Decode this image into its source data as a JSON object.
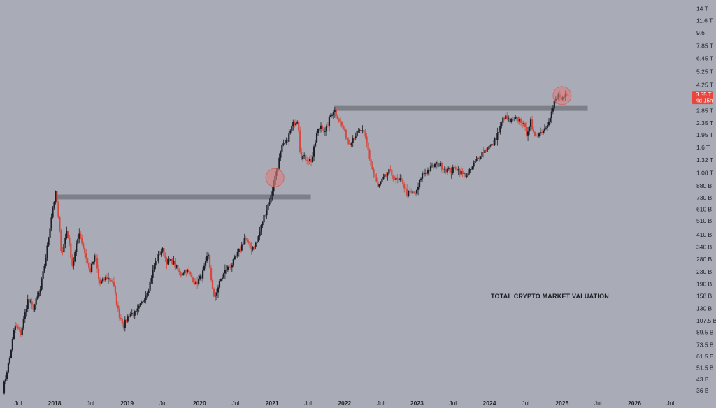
{
  "chart_data": {
    "type": "candlestick",
    "title": "",
    "xlabel": "",
    "ylabel": "",
    "y_scale": "log",
    "ylim": [
      32000000000,
      15000000000000
    ],
    "xlim": [
      "2017-04-01",
      "2026-10-01"
    ],
    "grid": false,
    "y_tick_labels": [
      "14 T",
      "11.6 T",
      "9.6 T",
      "7.85 T",
      "6.45 T",
      "5.25 T",
      "4.25 T",
      "2.85 T",
      "2.35 T",
      "1.95 T",
      "1.6 T",
      "1.32 T",
      "1.08 T",
      "880 B",
      "730 B",
      "610 B",
      "510 B",
      "410 B",
      "340 B",
      "280 B",
      "230 B",
      "190 B",
      "158 B",
      "130 B",
      "107.5 B",
      "89.5 B",
      "73.5 B",
      "61.5 B",
      "51.5 B",
      "43 B",
      "36 B"
    ],
    "y_tick_values": [
      14000000000000,
      11600000000000,
      9600000000000,
      7850000000000,
      6450000000000,
      5250000000000,
      4250000000000,
      2850000000000,
      2350000000000,
      1950000000000,
      1600000000000,
      1320000000000,
      1080000000000,
      880000000000,
      730000000000,
      610000000000,
      510000000000,
      410000000000,
      340000000000,
      280000000000,
      230000000000,
      190000000000,
      158000000000,
      130000000000,
      107500000000,
      89500000000,
      73500000000,
      61500000000,
      51500000000,
      43000000000,
      36000000000
    ],
    "x_ticks": [
      {
        "label": "Jul",
        "date": "2017-07-01",
        "year": false
      },
      {
        "label": "2018",
        "date": "2018-01-01",
        "year": true
      },
      {
        "label": "Jul",
        "date": "2018-07-01",
        "year": false
      },
      {
        "label": "2019",
        "date": "2019-01-01",
        "year": true
      },
      {
        "label": "Jul",
        "date": "2019-07-01",
        "year": false
      },
      {
        "label": "2020",
        "date": "2020-01-01",
        "year": true
      },
      {
        "label": "Jul",
        "date": "2020-07-01",
        "year": false
      },
      {
        "label": "2021",
        "date": "2021-01-01",
        "year": true
      },
      {
        "label": "Jul",
        "date": "2021-07-01",
        "year": false
      },
      {
        "label": "2022",
        "date": "2022-01-01",
        "year": true
      },
      {
        "label": "Jul",
        "date": "2022-07-01",
        "year": false
      },
      {
        "label": "2023",
        "date": "2023-01-01",
        "year": true
      },
      {
        "label": "Jul",
        "date": "2023-07-01",
        "year": false
      },
      {
        "label": "2024",
        "date": "2024-01-01",
        "year": true
      },
      {
        "label": "Jul",
        "date": "2024-07-01",
        "year": false
      },
      {
        "label": "2025",
        "date": "2025-01-01",
        "year": true
      },
      {
        "label": "Jul",
        "date": "2025-07-01",
        "year": false
      },
      {
        "label": "2026",
        "date": "2026-01-01",
        "year": true
      },
      {
        "label": "Jul",
        "date": "2026-07-01",
        "year": false
      }
    ],
    "series": [
      {
        "price_path": [
          [
            "2017-04-15",
            36000000000
          ],
          [
            "2017-05-20",
            60000000000
          ],
          [
            "2017-06-15",
            100000000000
          ],
          [
            "2017-07-15",
            88000000000
          ],
          [
            "2017-08-20",
            150000000000
          ],
          [
            "2017-09-15",
            130000000000
          ],
          [
            "2017-10-20",
            170000000000
          ],
          [
            "2017-11-20",
            300000000000
          ],
          [
            "2017-12-20",
            600000000000
          ],
          [
            "2018-01-08",
            800000000000
          ],
          [
            "2018-02-06",
            300000000000
          ],
          [
            "2018-03-05",
            450000000000
          ],
          [
            "2018-04-01",
            250000000000
          ],
          [
            "2018-05-05",
            430000000000
          ],
          [
            "2018-06-28",
            230000000000
          ],
          [
            "2018-07-25",
            300000000000
          ],
          [
            "2018-08-14",
            190000000000
          ],
          [
            "2018-09-20",
            210000000000
          ],
          [
            "2018-10-20",
            200000000000
          ],
          [
            "2018-11-20",
            120000000000
          ],
          [
            "2018-12-15",
            100000000000
          ],
          [
            "2019-01-15",
            120000000000
          ],
          [
            "2019-02-15",
            120000000000
          ],
          [
            "2019-03-15",
            140000000000
          ],
          [
            "2019-04-20",
            180000000000
          ],
          [
            "2019-05-20",
            260000000000
          ],
          [
            "2019-06-26",
            330000000000
          ],
          [
            "2019-07-20",
            270000000000
          ],
          [
            "2019-08-20",
            270000000000
          ],
          [
            "2019-09-25",
            220000000000
          ],
          [
            "2019-10-26",
            240000000000
          ],
          [
            "2019-12-15",
            190000000000
          ],
          [
            "2020-01-15",
            220000000000
          ],
          [
            "2020-02-14",
            300000000000
          ],
          [
            "2020-03-13",
            150000000000
          ],
          [
            "2020-04-15",
            200000000000
          ],
          [
            "2020-05-15",
            240000000000
          ],
          [
            "2020-06-15",
            260000000000
          ],
          [
            "2020-07-25",
            330000000000
          ],
          [
            "2020-08-15",
            390000000000
          ],
          [
            "2020-09-15",
            330000000000
          ],
          [
            "2020-10-15",
            360000000000
          ],
          [
            "2020-11-20",
            540000000000
          ],
          [
            "2020-12-28",
            760000000000
          ],
          [
            "2021-01-15",
            1000000000000
          ],
          [
            "2021-02-20",
            1600000000000
          ],
          [
            "2021-03-15",
            1750000000000
          ],
          [
            "2021-04-15",
            2300000000000
          ],
          [
            "2021-05-12",
            2500000000000
          ],
          [
            "2021-05-24",
            1400000000000
          ],
          [
            "2021-06-20",
            1350000000000
          ],
          [
            "2021-07-20",
            1300000000000
          ],
          [
            "2021-08-15",
            2000000000000
          ],
          [
            "2021-09-06",
            2300000000000
          ],
          [
            "2021-09-25",
            2000000000000
          ],
          [
            "2021-10-20",
            2600000000000
          ],
          [
            "2021-11-10",
            2900000000000
          ],
          [
            "2021-12-15",
            2300000000000
          ],
          [
            "2022-01-24",
            1700000000000
          ],
          [
            "2022-02-15",
            1900000000000
          ],
          [
            "2022-03-28",
            2100000000000
          ],
          [
            "2022-04-20",
            1800000000000
          ],
          [
            "2022-05-12",
            1250000000000
          ],
          [
            "2022-06-18",
            860000000000
          ],
          [
            "2022-07-20",
            1000000000000
          ],
          [
            "2022-08-14",
            1100000000000
          ],
          [
            "2022-09-20",
            950000000000
          ],
          [
            "2022-10-20",
            950000000000
          ],
          [
            "2022-11-09",
            780000000000
          ],
          [
            "2022-12-30",
            790000000000
          ],
          [
            "2023-01-25",
            1050000000000
          ],
          [
            "2023-02-20",
            1100000000000
          ],
          [
            "2023-03-25",
            1200000000000
          ],
          [
            "2023-04-15",
            1250000000000
          ],
          [
            "2023-05-20",
            1150000000000
          ],
          [
            "2023-06-20",
            1100000000000
          ],
          [
            "2023-07-15",
            1180000000000
          ],
          [
            "2023-08-20",
            1050000000000
          ],
          [
            "2023-09-15",
            1050000000000
          ],
          [
            "2023-10-25",
            1300000000000
          ],
          [
            "2023-11-20",
            1450000000000
          ],
          [
            "2023-12-20",
            1600000000000
          ],
          [
            "2024-01-15",
            1650000000000
          ],
          [
            "2024-02-20",
            2100000000000
          ],
          [
            "2024-03-14",
            2600000000000
          ],
          [
            "2024-04-15",
            2400000000000
          ],
          [
            "2024-05-20",
            2500000000000
          ],
          [
            "2024-06-15",
            2400000000000
          ],
          [
            "2024-07-05",
            2000000000000
          ],
          [
            "2024-07-28",
            2400000000000
          ],
          [
            "2024-08-05",
            1950000000000
          ],
          [
            "2024-09-10",
            2000000000000
          ],
          [
            "2024-10-10",
            2200000000000
          ],
          [
            "2024-11-10",
            2800000000000
          ],
          [
            "2024-11-25",
            3300000000000
          ],
          [
            "2024-12-17",
            3650000000000
          ],
          [
            "2024-12-30",
            3300000000000
          ],
          [
            "2025-01-20",
            3550000000000
          ],
          [
            "2025-02-01",
            3550000000000
          ]
        ]
      }
    ],
    "levels": [
      {
        "from": "2018-01-01",
        "to": "2021-07-15",
        "value": 740000000000
      },
      {
        "from": "2021-11-10",
        "to": "2025-05-10",
        "value": 2950000000000
      }
    ],
    "highlights": [
      {
        "date": "2021-01-15",
        "value": 1000000000000
      },
      {
        "date": "2025-01-01",
        "value": 3600000000000
      }
    ],
    "last_price": {
      "value": 3550000000000,
      "label": "3.55 T",
      "countdown": "4d 15h",
      "color": "#e8453c"
    },
    "annotation": "TOTAL CRYPTO MARKET VALUATION",
    "colors": {
      "background": "#a9acb6",
      "up": "#1d1f26",
      "down": "#d6483d",
      "level_band": "#7e8089",
      "highlight_fill": "#e07a7a",
      "highlight_stroke": "#d9534f"
    }
  }
}
